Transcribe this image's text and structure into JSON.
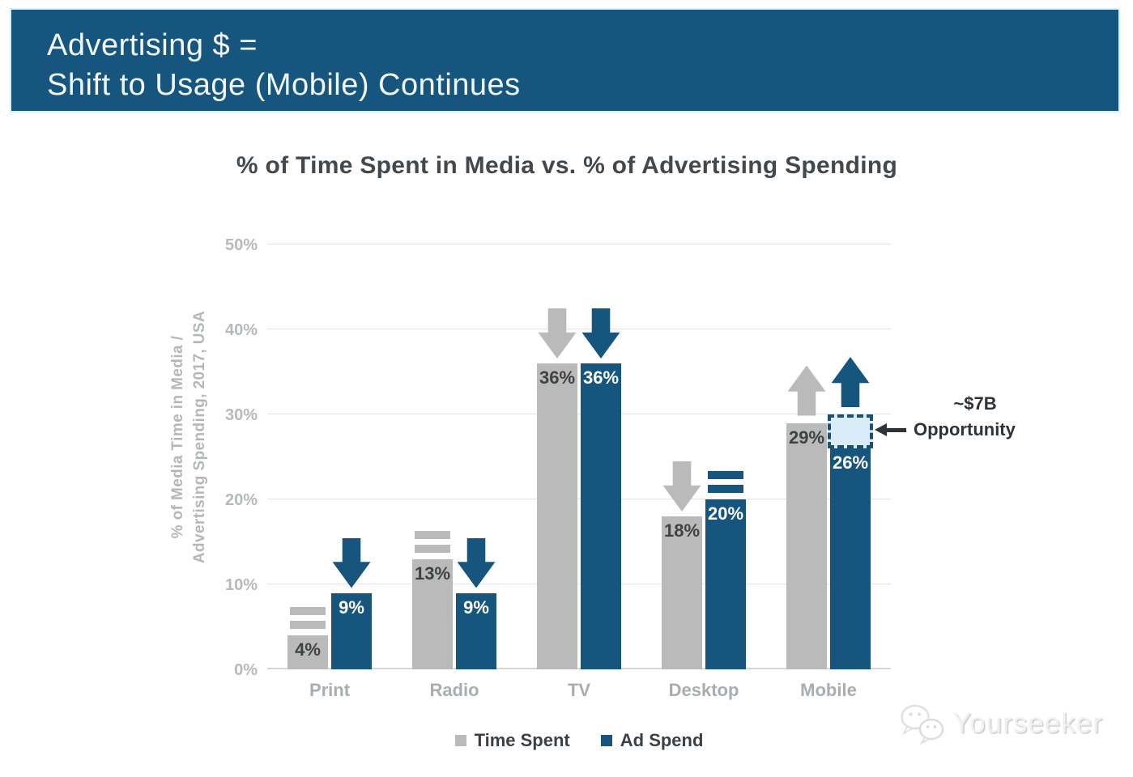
{
  "header": {
    "title_line1": "Advertising $ =",
    "title_line2": "Shift to Usage (Mobile) Continues"
  },
  "chart_data": {
    "type": "bar",
    "title": "% of Time Spent in Media vs. % of Advertising Spending",
    "ylabel_line1": "% of Media Time in Media /",
    "ylabel_line2": "Advertising Spending, 2017, USA",
    "categories": [
      "Print",
      "Radio",
      "TV",
      "Desktop",
      "Mobile"
    ],
    "series": [
      {
        "name": "Time Spent",
        "color": "#bababa",
        "values": [
          4,
          13,
          36,
          18,
          29
        ],
        "trends": [
          "flat",
          "flat",
          "down",
          "down",
          "up"
        ]
      },
      {
        "name": "Ad Spend",
        "color": "#16567e",
        "values": [
          9,
          9,
          36,
          20,
          26
        ],
        "trends": [
          "down",
          "down",
          "down",
          "flat",
          "up"
        ]
      }
    ],
    "ylim": [
      0,
      50
    ],
    "yticks": [
      "0%",
      "10%",
      "20%",
      "30%",
      "40%",
      "50%"
    ],
    "grid": true,
    "legend_position": "bottom",
    "annotation": {
      "line1": "~$7B",
      "line2": "Opportunity",
      "target_category": "Mobile",
      "target_series": "Ad Spend",
      "box_from_pct": 26,
      "box_to_pct": 30,
      "box_fill": "#daecf8",
      "box_border": "#1b5070"
    }
  },
  "watermark": {
    "text": "Yourseeker"
  },
  "colors": {
    "header_bg": "#16567e",
    "bar_gray": "#bababa",
    "bar_blue": "#16567e",
    "opportunity_fill": "#daecf8",
    "opportunity_border": "#1b5070"
  }
}
